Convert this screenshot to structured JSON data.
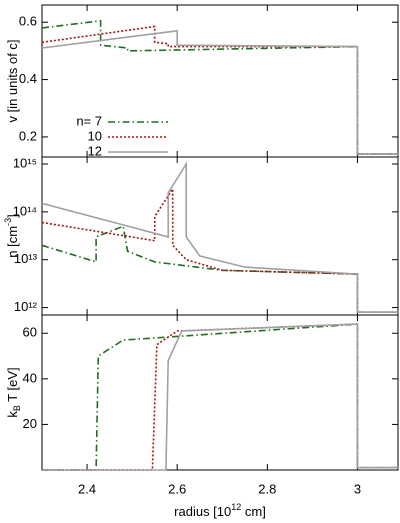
{
  "chart_data": [
    {
      "type": "line",
      "ylabel": [
        "v [in units of c]"
      ],
      "xlim": [
        2.3,
        3.09
      ],
      "xticks": [
        2.4,
        2.6,
        2.8,
        3.0
      ],
      "ylim": [
        0.13,
        0.66
      ],
      "yticks": [
        0.2,
        0.4,
        0.6
      ],
      "legend": "lower left",
      "series": [
        {
          "name": "n= 7",
          "color": "#1f6e1f",
          "linestyle": "dashdot",
          "x": [
            2.3,
            2.43,
            2.43,
            2.49,
            2.49,
            3.0,
            3.0,
            3.09
          ],
          "values": [
            0.58,
            0.605,
            0.52,
            0.51,
            0.5,
            0.515,
            0.14,
            0.14
          ]
        },
        {
          "name": "10",
          "color": "#a31515",
          "linestyle": "dotted",
          "x": [
            2.3,
            2.55,
            2.55,
            2.58,
            2.58,
            3.0,
            3.0,
            3.09
          ],
          "values": [
            0.53,
            0.585,
            0.53,
            0.525,
            0.515,
            0.515,
            0.14,
            0.14
          ]
        },
        {
          "name": "12",
          "color": "#a0a0a0",
          "linestyle": "solid",
          "x": [
            2.3,
            2.6,
            2.6,
            3.0,
            3.0,
            3.09
          ],
          "values": [
            0.51,
            0.57,
            0.52,
            0.515,
            0.14,
            0.14
          ]
        }
      ]
    },
    {
      "type": "line",
      "ylabel": [
        "n [cm",
        "-3",
        "]"
      ],
      "log": true,
      "xlim": [
        2.3,
        3.09
      ],
      "xticks": [
        2.4,
        2.6,
        2.8,
        3.0
      ],
      "ylim": [
        700000000000.0,
        1400000000000000.0
      ],
      "yticks": [
        {
          "value": 1000000000000.0,
          "label": "10¹²"
        },
        {
          "value": 10000000000000.0,
          "label": "10¹³"
        },
        {
          "value": 100000000000000.0,
          "label": "10¹⁴"
        },
        {
          "value": 1000000000000000.0,
          "label": "10¹⁵"
        }
      ],
      "series": [
        {
          "color": "#1f6e1f",
          "linestyle": "dashdot",
          "x": [
            2.3,
            2.42,
            2.42,
            2.48,
            2.49,
            2.55,
            2.7,
            3.0,
            3.0,
            3.09
          ],
          "values": [
            20000000000000.0,
            9000000000000.0,
            30000000000000.0,
            50000000000000.0,
            15000000000000.0,
            9000000000000.0,
            6000000000000.0,
            5000000000000.0,
            800000000000.0,
            800000000000.0
          ]
        },
        {
          "color": "#a31515",
          "linestyle": "dotted",
          "x": [
            2.3,
            2.55,
            2.55,
            2.59,
            2.59,
            2.62,
            2.7,
            3.0,
            3.0,
            3.09
          ],
          "values": [
            60000000000000.0,
            25000000000000.0,
            80000000000000.0,
            300000000000000.0,
            20000000000000.0,
            10000000000000.0,
            6000000000000.0,
            5000000000000.0,
            800000000000.0,
            800000000000.0
          ]
        },
        {
          "color": "#a0a0a0",
          "linestyle": "solid",
          "x": [
            2.3,
            2.58,
            2.58,
            2.62,
            2.62,
            2.65,
            2.75,
            3.0,
            3.0,
            3.09
          ],
          "values": [
            150000000000000.0,
            30000000000000.0,
            250000000000000.0,
            1000000000000000.0,
            30000000000000.0,
            12000000000000.0,
            7000000000000.0,
            5000000000000.0,
            800000000000.0,
            800000000000.0
          ]
        }
      ]
    },
    {
      "type": "line",
      "ylabel": [
        "k",
        "B",
        " T [eV]"
      ],
      "xlabel": [
        "radius [10",
        "12",
        " cm]"
      ],
      "xlim": [
        2.3,
        3.09
      ],
      "xticks": [
        2.4,
        2.6,
        2.8,
        3.0
      ],
      "ylim": [
        0,
        68
      ],
      "yticks": [
        20,
        40,
        60
      ],
      "series": [
        {
          "color": "#1f6e1f",
          "linestyle": "dashdot",
          "x": [
            2.3,
            2.42,
            2.425,
            2.48,
            3.0,
            3.0,
            3.09
          ],
          "values": [
            0,
            0,
            50,
            57,
            64,
            1,
            1
          ]
        },
        {
          "color": "#a31515",
          "linestyle": "dotted",
          "x": [
            2.3,
            2.545,
            2.555,
            2.6,
            3.0,
            3.0,
            3.09
          ],
          "values": [
            0,
            0,
            55,
            61,
            64,
            1,
            1
          ]
        },
        {
          "color": "#a0a0a0",
          "linestyle": "solid",
          "x": [
            2.3,
            2.575,
            2.58,
            2.61,
            3.0,
            3.0,
            3.09
          ],
          "values": [
            0,
            0,
            48,
            61,
            64,
            1,
            1
          ]
        }
      ]
    }
  ]
}
